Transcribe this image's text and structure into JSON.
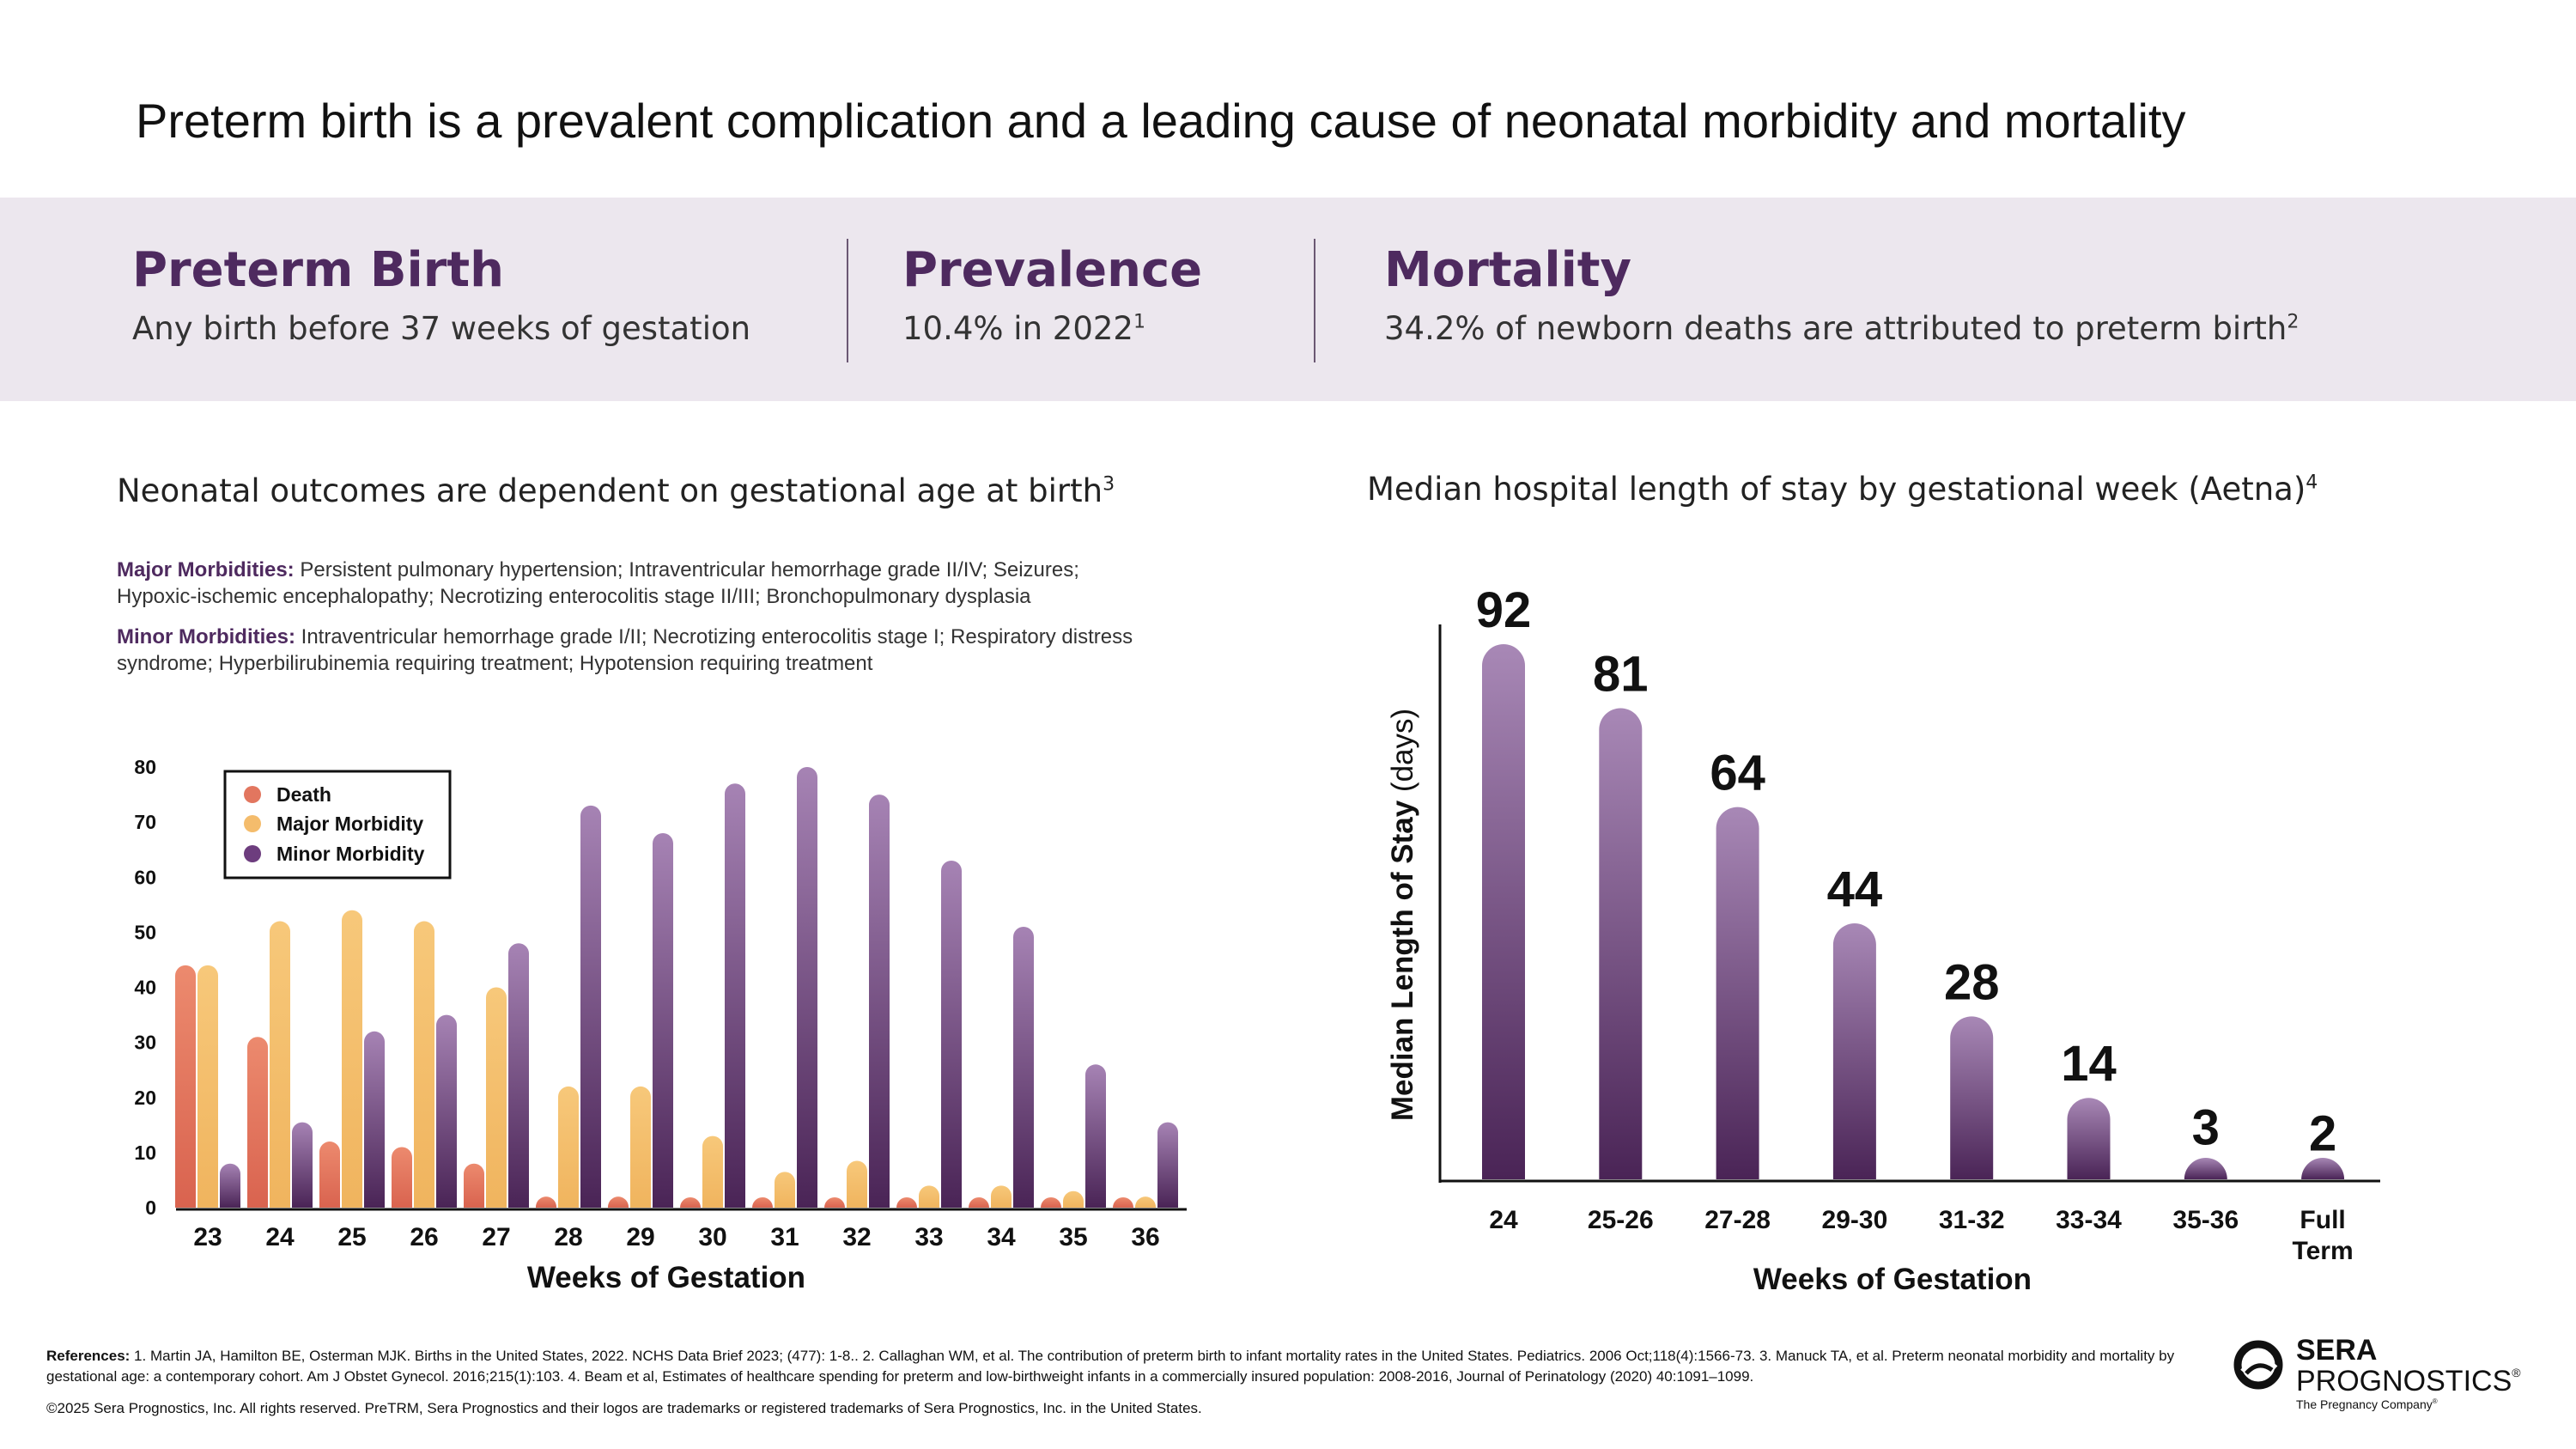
{
  "page_title": "Preterm birth is a prevalent complication and a leading cause of neonatal morbidity and mortality",
  "stats": [
    {
      "heading": "Preterm Birth",
      "text": "Any birth before 37 weeks of gestation",
      "sup": ""
    },
    {
      "heading": "Prevalence",
      "text": "10.4% in 2022",
      "sup": "1"
    },
    {
      "heading": "Mortality",
      "text": "34.2% of newborn deaths are attributed to preterm birth",
      "sup": "2"
    }
  ],
  "left_panel": {
    "title": "Neonatal outcomes are dependent on gestational age at birth",
    "title_sup": "3",
    "major_label": "Major Morbidities:",
    "major_text": "Persistent pulmonary hypertension; Intraventricular hemorrhage grade II/IV; Seizures; Hypoxic-ischemic encephalopathy; Necrotizing enterocolitis stage II/III; Bronchopulmonary dysplasia",
    "minor_label": "Minor Morbidities:",
    "minor_text": "Intraventricular hemorrhage grade I/II; Necrotizing enterocolitis stage I; Respiratory distress syndrome; Hyperbilirubinemia requiring treatment; Hypotension requiring treatment"
  },
  "right_panel": {
    "title": "Median hospital length of stay by gestational week (Aetna)",
    "title_sup": "4"
  },
  "chart_data": [
    {
      "type": "bar",
      "title": "",
      "xlabel": "Weeks of Gestation",
      "ylabel": "",
      "ylim": [
        0,
        80
      ],
      "yticks": [
        "0",
        "10",
        "20",
        "30",
        "40",
        "50",
        "60",
        "70",
        "80"
      ],
      "categories": [
        "23",
        "24",
        "25",
        "26",
        "27",
        "28",
        "29",
        "30",
        "31",
        "32",
        "33",
        "34",
        "35",
        "36"
      ],
      "legend_position": "top-left",
      "series": [
        {
          "name": "Death",
          "color": "#e2765f",
          "values": [
            44,
            31,
            12,
            11,
            8,
            2,
            2,
            1.5,
            1,
            0.7,
            0.3,
            0.2,
            0.1,
            0.1
          ]
        },
        {
          "name": "Major Morbidity",
          "color": "#f4bc6c",
          "values": [
            44,
            52,
            54,
            52,
            40,
            22,
            22,
            13,
            6.5,
            8.5,
            4,
            4,
            3,
            2
          ]
        },
        {
          "name": "Minor Morbidity",
          "color": "#6d3d7e",
          "values": [
            8,
            15.5,
            32,
            35,
            48,
            73,
            68,
            77,
            80,
            75,
            63,
            51,
            26,
            15.5
          ]
        }
      ]
    },
    {
      "type": "bar",
      "title": "",
      "xlabel": "Weeks of Gestation",
      "ylabel_bold": "Median Length of Stay",
      "ylabel_light": " (days)",
      "ylim": [
        0,
        95
      ],
      "categories": [
        "24",
        "25-26",
        "27-28",
        "29-30",
        "31-32",
        "33-34",
        "35-36",
        "Full Term"
      ],
      "values": [
        92,
        81,
        64,
        44,
        28,
        14,
        3,
        2
      ],
      "color": "#6d3d7e"
    }
  ],
  "footer": {
    "references_label": "References:",
    "references_text": " 1. Martin JA, Hamilton BE, Osterman MJK. Births in the United States, 2022. NCHS Data Brief 2023; (477): 1-8.. 2. Callaghan WM, et al. The contribution of preterm birth to infant mortality rates in the United States. Pediatrics. 2006 Oct;118(4):1566-73. 3.  Manuck TA, et al. Preterm neonatal morbidity and mortality by gestational age: a contemporary cohort. Am J Obstet Gynecol. 2016;215(1):103. 4. Beam et al, Estimates of healthcare spending for preterm and low-birthweight infants in a commercially insured population: 2008-2016, Journal of Perinatology (2020) 40:1091–1099.",
    "copyright": "©2025 Sera Prognostics, Inc. All rights reserved. PreTRM, Sera Prognostics and their logos are trademarks or registered trademarks of Sera Prognostics, Inc. in the United States."
  },
  "logo": {
    "line1": "SERA",
    "line2": "PROGNOSTICS",
    "reg": "®",
    "tagline": "The Pregnancy Company",
    "tm": "®"
  }
}
